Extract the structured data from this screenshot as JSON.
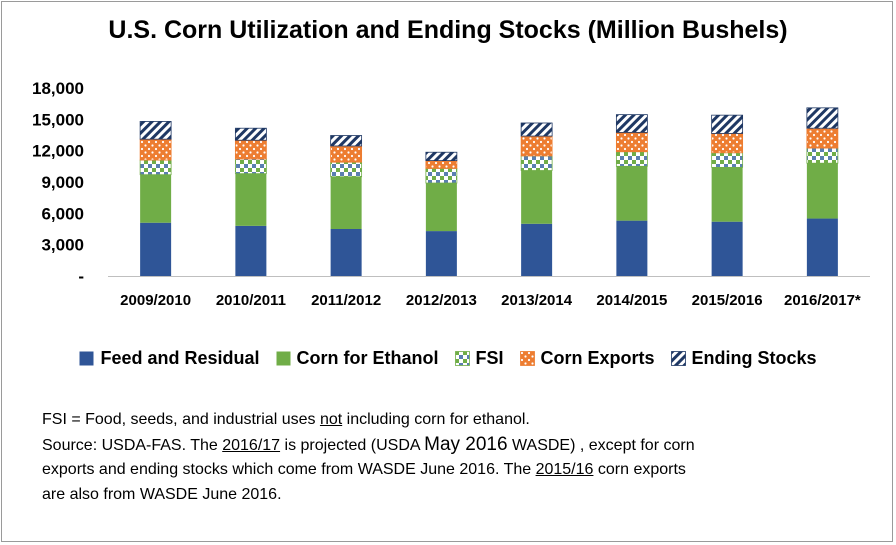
{
  "title": "U.S. Corn Utilization and Ending Stocks (Million Bushels)",
  "chart_data": {
    "type": "bar",
    "stacked": true,
    "title": "U.S. Corn Utilization and Ending Stocks (Million Bushels)",
    "xlabel": "",
    "ylabel": "",
    "ylim": [
      0,
      18000
    ],
    "ytick_labels": [
      "-",
      "3,000",
      "6,000",
      "9,000",
      "12,000",
      "15,000",
      "18,000"
    ],
    "grid": false,
    "legend_position": "bottom",
    "categories": [
      "2009/2010",
      "2010/2011",
      "2011/2012",
      "2012/2013",
      "2013/2014",
      "2014/2015",
      "2015/2016",
      "2016/2017*"
    ],
    "series": [
      {
        "name": "Feed and Residual",
        "color": "#2f5597",
        "pattern": "solid",
        "values": [
          5100,
          4800,
          4500,
          4300,
          5000,
          5300,
          5200,
          5500
        ]
      },
      {
        "name": "Corn for Ethanol",
        "color": "#70ad47",
        "pattern": "solid",
        "values": [
          4600,
          5000,
          5000,
          4600,
          5100,
          5200,
          5200,
          5300
        ]
      },
      {
        "name": "FSI",
        "color": "#70ad47",
        "pattern": "checker",
        "values": [
          1400,
          1400,
          1400,
          1400,
          1400,
          1400,
          1400,
          1450
        ]
      },
      {
        "name": "Corn Exports",
        "color": "#ed7d31",
        "pattern": "dots",
        "values": [
          2000,
          1800,
          1550,
          750,
          1900,
          1850,
          1850,
          1900
        ]
      },
      {
        "name": "Ending Stocks",
        "color": "#1f3864",
        "pattern": "diagonal",
        "values": [
          1700,
          1150,
          1000,
          800,
          1250,
          1700,
          1750,
          1950
        ]
      }
    ]
  },
  "notes": {
    "line1_a": "FSI = Food, seeds, and industrial uses ",
    "line1_u": "not",
    "line1_b": " including corn for ethanol.",
    "line2_a": "Source: USDA-FAS. The ",
    "line2_u1": "2016/17",
    "line2_b": " is projected (USDA ",
    "line2_big": "May 2016",
    "line2_c": " WASDE) , except for corn",
    "line3": "exports and ending stocks which come from WASDE June 2016.  The ",
    "line3_u": "2015/16",
    "line3_b": " corn exports",
    "line4": "are also from WASDE June 2016."
  }
}
